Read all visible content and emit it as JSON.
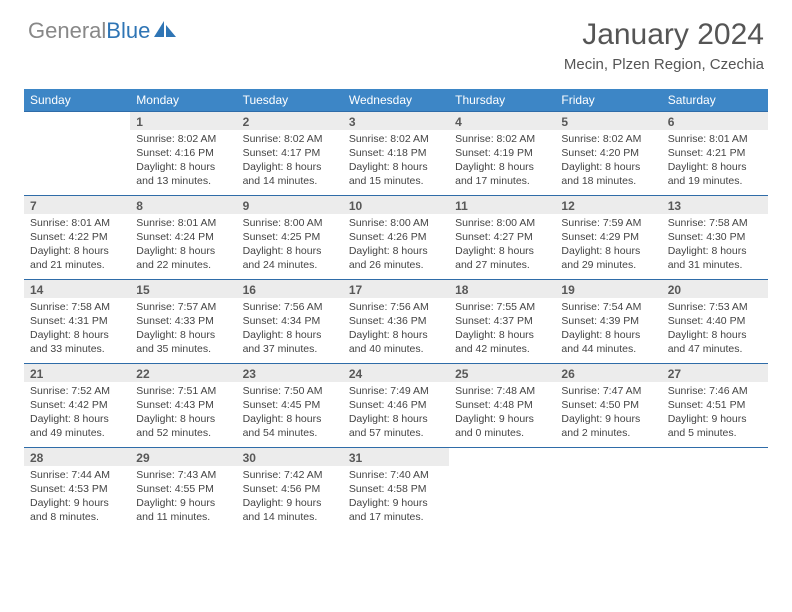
{
  "logo": {
    "text_gray": "General",
    "text_blue": "Blue",
    "icon_color": "#2f75b5"
  },
  "header": {
    "title": "January 2024",
    "location": "Mecin, Plzen Region, Czechia"
  },
  "colors": {
    "header_bg": "#3d86c6",
    "header_text": "#ffffff",
    "daynum_bg": "#ececec",
    "row_border": "#2f6ca8",
    "body_text": "#444444",
    "title_text": "#555555"
  },
  "daynames": [
    "Sunday",
    "Monday",
    "Tuesday",
    "Wednesday",
    "Thursday",
    "Friday",
    "Saturday"
  ],
  "weeks": [
    {
      "nums": [
        "",
        "1",
        "2",
        "3",
        "4",
        "5",
        "6"
      ],
      "details": [
        "",
        "Sunrise: 8:02 AM\nSunset: 4:16 PM\nDaylight: 8 hours and 13 minutes.",
        "Sunrise: 8:02 AM\nSunset: 4:17 PM\nDaylight: 8 hours and 14 minutes.",
        "Sunrise: 8:02 AM\nSunset: 4:18 PM\nDaylight: 8 hours and 15 minutes.",
        "Sunrise: 8:02 AM\nSunset: 4:19 PM\nDaylight: 8 hours and 17 minutes.",
        "Sunrise: 8:02 AM\nSunset: 4:20 PM\nDaylight: 8 hours and 18 minutes.",
        "Sunrise: 8:01 AM\nSunset: 4:21 PM\nDaylight: 8 hours and 19 minutes."
      ]
    },
    {
      "nums": [
        "7",
        "8",
        "9",
        "10",
        "11",
        "12",
        "13"
      ],
      "details": [
        "Sunrise: 8:01 AM\nSunset: 4:22 PM\nDaylight: 8 hours and 21 minutes.",
        "Sunrise: 8:01 AM\nSunset: 4:24 PM\nDaylight: 8 hours and 22 minutes.",
        "Sunrise: 8:00 AM\nSunset: 4:25 PM\nDaylight: 8 hours and 24 minutes.",
        "Sunrise: 8:00 AM\nSunset: 4:26 PM\nDaylight: 8 hours and 26 minutes.",
        "Sunrise: 8:00 AM\nSunset: 4:27 PM\nDaylight: 8 hours and 27 minutes.",
        "Sunrise: 7:59 AM\nSunset: 4:29 PM\nDaylight: 8 hours and 29 minutes.",
        "Sunrise: 7:58 AM\nSunset: 4:30 PM\nDaylight: 8 hours and 31 minutes."
      ]
    },
    {
      "nums": [
        "14",
        "15",
        "16",
        "17",
        "18",
        "19",
        "20"
      ],
      "details": [
        "Sunrise: 7:58 AM\nSunset: 4:31 PM\nDaylight: 8 hours and 33 minutes.",
        "Sunrise: 7:57 AM\nSunset: 4:33 PM\nDaylight: 8 hours and 35 minutes.",
        "Sunrise: 7:56 AM\nSunset: 4:34 PM\nDaylight: 8 hours and 37 minutes.",
        "Sunrise: 7:56 AM\nSunset: 4:36 PM\nDaylight: 8 hours and 40 minutes.",
        "Sunrise: 7:55 AM\nSunset: 4:37 PM\nDaylight: 8 hours and 42 minutes.",
        "Sunrise: 7:54 AM\nSunset: 4:39 PM\nDaylight: 8 hours and 44 minutes.",
        "Sunrise: 7:53 AM\nSunset: 4:40 PM\nDaylight: 8 hours and 47 minutes."
      ]
    },
    {
      "nums": [
        "21",
        "22",
        "23",
        "24",
        "25",
        "26",
        "27"
      ],
      "details": [
        "Sunrise: 7:52 AM\nSunset: 4:42 PM\nDaylight: 8 hours and 49 minutes.",
        "Sunrise: 7:51 AM\nSunset: 4:43 PM\nDaylight: 8 hours and 52 minutes.",
        "Sunrise: 7:50 AM\nSunset: 4:45 PM\nDaylight: 8 hours and 54 minutes.",
        "Sunrise: 7:49 AM\nSunset: 4:46 PM\nDaylight: 8 hours and 57 minutes.",
        "Sunrise: 7:48 AM\nSunset: 4:48 PM\nDaylight: 9 hours and 0 minutes.",
        "Sunrise: 7:47 AM\nSunset: 4:50 PM\nDaylight: 9 hours and 2 minutes.",
        "Sunrise: 7:46 AM\nSunset: 4:51 PM\nDaylight: 9 hours and 5 minutes."
      ]
    },
    {
      "nums": [
        "28",
        "29",
        "30",
        "31",
        "",
        "",
        ""
      ],
      "details": [
        "Sunrise: 7:44 AM\nSunset: 4:53 PM\nDaylight: 9 hours and 8 minutes.",
        "Sunrise: 7:43 AM\nSunset: 4:55 PM\nDaylight: 9 hours and 11 minutes.",
        "Sunrise: 7:42 AM\nSunset: 4:56 PM\nDaylight: 9 hours and 14 minutes.",
        "Sunrise: 7:40 AM\nSunset: 4:58 PM\nDaylight: 9 hours and 17 minutes.",
        "",
        "",
        ""
      ]
    }
  ]
}
